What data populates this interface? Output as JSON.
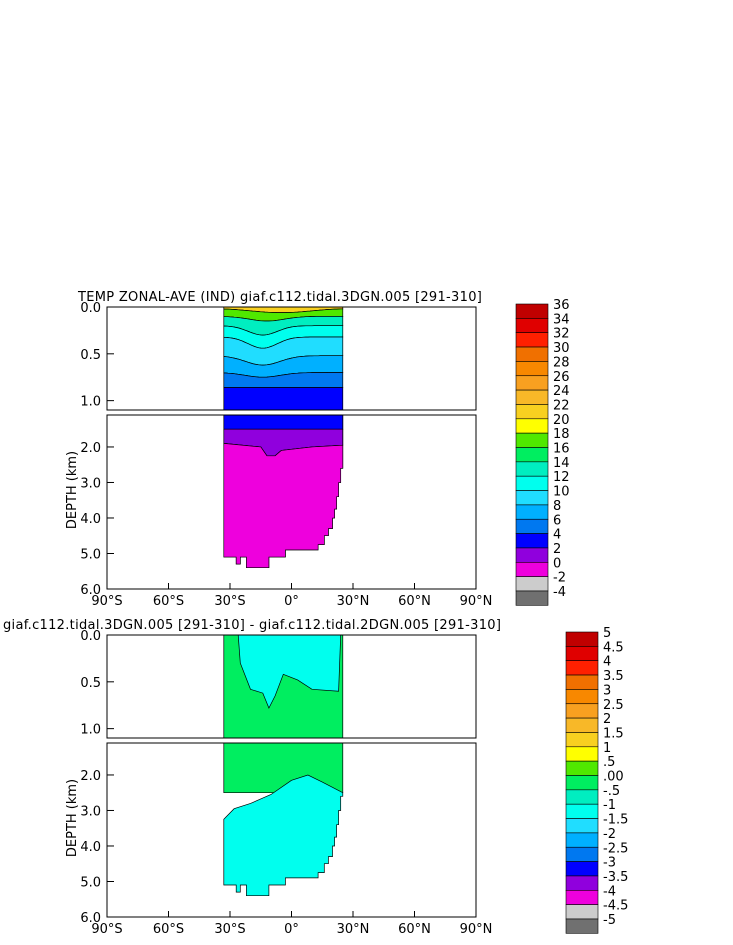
{
  "chart_data": [
    {
      "type": "contour",
      "title": "TEMP ZONAL-AVE (IND) giaf.c112.tidal.3DGN.005 [291-310]",
      "ylabel": "DEPTH (km)",
      "xlim": [
        -90,
        90
      ],
      "ylim": [
        0,
        6
      ],
      "upper_panel_depth_range": [
        0,
        1.1
      ],
      "lower_panel_depth_range": [
        1.1,
        6.0
      ],
      "x_tick_labels": [
        "90°S",
        "60°S",
        "30°S",
        "0°",
        "30°N",
        "60°N",
        "90°N"
      ],
      "upper_y_tick_labels": [
        "0.0",
        "0.5",
        "1.0"
      ],
      "lower_y_tick_labels": [
        "2.0",
        "3.0",
        "4.0",
        "5.0",
        "6.0"
      ],
      "data_lat_range": [
        -33,
        25
      ],
      "colorbar": {
        "levels": [
          "36",
          "34",
          "32",
          "30",
          "28",
          "26",
          "24",
          "22",
          "20",
          "18",
          "16",
          "14",
          "12",
          "10",
          "8",
          "6",
          "4",
          "2",
          "0",
          "-2",
          "-4"
        ],
        "colors": [
          "#c00000",
          "#e00000",
          "#ff2000",
          "#f07000",
          "#f88800",
          "#f8a020",
          "#f8b828",
          "#f8d020",
          "#ffff00",
          "#50e800",
          "#00ee60",
          "#00eec0",
          "#00ffee",
          "#20ddff",
          "#00b0ff",
          "#0078f0",
          "#0000ff",
          "#9000dd",
          "#ee00dd",
          "#cccccc"
        ]
      }
    },
    {
      "type": "contour",
      "title": "giaf.c112.tidal.3DGN.005 [291-310] - giaf.c112.tidal.2DGN.005 [291-310]",
      "ylabel": "DEPTH (km)",
      "xlim": [
        -90,
        90
      ],
      "ylim": [
        0,
        6
      ],
      "upper_panel_depth_range": [
        0,
        1.1
      ],
      "lower_panel_depth_range": [
        1.1,
        6.0
      ],
      "x_tick_labels": [
        "90°S",
        "60°S",
        "30°S",
        "0°",
        "30°N",
        "60°N",
        "90°N"
      ],
      "upper_y_tick_labels": [
        "0.0",
        "0.5",
        "1.0"
      ],
      "lower_y_tick_labels": [
        "2.0",
        "3.0",
        "4.0",
        "5.0",
        "6.0"
      ],
      "data_lat_range": [
        -33,
        25
      ],
      "colorbar": {
        "levels": [
          "5",
          "4.5",
          "4",
          "3.5",
          "3",
          "2.5",
          "2",
          "1.5",
          "1",
          ".5",
          ".00",
          "-.5",
          "-1",
          "-1.5",
          "-2",
          "-2.5",
          "-3",
          "-3.5",
          "-4",
          "-4.5",
          "-5"
        ],
        "colors": [
          "#c00000",
          "#e00000",
          "#ff2000",
          "#f07000",
          "#f88800",
          "#f8a020",
          "#f8b828",
          "#f8d020",
          "#ffff00",
          "#50e800",
          "#00ee60",
          "#00eec0",
          "#00ffee",
          "#20ddff",
          "#00b0ff",
          "#0078f0",
          "#0000ff",
          "#9000dd",
          "#ee00dd",
          "#cccccc"
        ]
      }
    }
  ],
  "colors": {
    "bottom_swatch": "#707070",
    "outline": "#000000"
  }
}
